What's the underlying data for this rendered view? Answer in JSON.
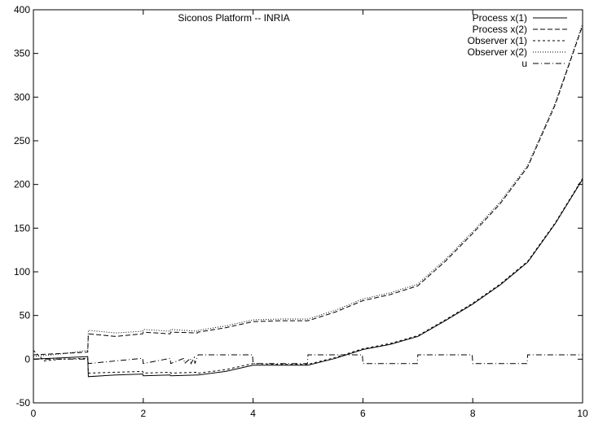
{
  "chart_data": {
    "type": "line",
    "title": "Siconos Platform -- INRIA",
    "xlabel": "",
    "ylabel": "",
    "xlim": [
      0,
      10
    ],
    "ylim": [
      -50,
      400
    ],
    "xticks": [
      0,
      2,
      4,
      6,
      8,
      10
    ],
    "yticks": [
      -50,
      0,
      50,
      100,
      150,
      200,
      250,
      300,
      350,
      400
    ],
    "grid": false,
    "legend_position": "top-right",
    "series": [
      {
        "name": "Process x(1)",
        "dash": "solid",
        "points": [
          [
            0,
            0
          ],
          [
            0.5,
            1.5
          ],
          [
            0.99,
            3
          ],
          [
            1.0,
            -20
          ],
          [
            1.5,
            -18
          ],
          [
            1.99,
            -17
          ],
          [
            2.0,
            -19
          ],
          [
            2.49,
            -18
          ],
          [
            2.5,
            -19
          ],
          [
            2.99,
            -18
          ],
          [
            3.0,
            -18
          ],
          [
            3.5,
            -14
          ],
          [
            4.0,
            -7
          ],
          [
            4.5,
            -7
          ],
          [
            5.0,
            -7
          ],
          [
            5.5,
            1
          ],
          [
            6.0,
            11
          ],
          [
            6.5,
            17
          ],
          [
            7.0,
            26
          ],
          [
            7.5,
            44
          ],
          [
            8.0,
            63
          ],
          [
            8.5,
            85
          ],
          [
            9.0,
            111
          ],
          [
            9.5,
            155
          ],
          [
            10.0,
            206
          ]
        ]
      },
      {
        "name": "Process x(2)",
        "dash": "dashed",
        "points": [
          [
            0,
            5
          ],
          [
            0.5,
            6.5
          ],
          [
            0.99,
            8
          ],
          [
            1.0,
            29
          ],
          [
            1.5,
            26
          ],
          [
            1.99,
            29
          ],
          [
            2.0,
            31
          ],
          [
            2.49,
            29
          ],
          [
            2.5,
            31
          ],
          [
            2.99,
            30
          ],
          [
            3.0,
            31
          ],
          [
            3.5,
            36
          ],
          [
            4.0,
            43
          ],
          [
            4.5,
            44
          ],
          [
            5.0,
            44
          ],
          [
            5.5,
            54
          ],
          [
            6.0,
            67
          ],
          [
            6.5,
            74
          ],
          [
            7.0,
            84
          ],
          [
            7.5,
            112
          ],
          [
            8.0,
            144
          ],
          [
            8.5,
            178
          ],
          [
            9.0,
            220
          ],
          [
            9.5,
            291
          ],
          [
            10.0,
            382
          ]
        ]
      },
      {
        "name": "Observer x(1)",
        "dash": "dotted",
        "points": [
          [
            0,
            10
          ],
          [
            0.2,
            -2
          ],
          [
            0.5,
            0
          ],
          [
            0.99,
            1
          ],
          [
            1.0,
            -16
          ],
          [
            1.5,
            -15
          ],
          [
            1.99,
            -14
          ],
          [
            2.0,
            -16
          ],
          [
            2.49,
            -15
          ],
          [
            2.5,
            -16
          ],
          [
            2.99,
            -15
          ],
          [
            3.0,
            -16
          ],
          [
            3.5,
            -12
          ],
          [
            4.0,
            -5
          ],
          [
            4.5,
            -6
          ],
          [
            5.0,
            -6
          ],
          [
            5.5,
            2
          ],
          [
            6.0,
            12
          ],
          [
            6.5,
            18
          ],
          [
            7.0,
            27
          ],
          [
            7.5,
            45
          ],
          [
            8.0,
            64
          ],
          [
            8.5,
            86
          ],
          [
            9.0,
            112
          ],
          [
            9.5,
            156
          ],
          [
            10.0,
            207
          ]
        ]
      },
      {
        "name": "Observer x(2)",
        "dash": "fine-dotted",
        "points": [
          [
            0,
            3
          ],
          [
            0.5,
            6
          ],
          [
            0.99,
            10
          ],
          [
            1.0,
            33
          ],
          [
            1.5,
            30
          ],
          [
            1.99,
            32
          ],
          [
            2.0,
            34
          ],
          [
            2.49,
            32
          ],
          [
            2.5,
            34
          ],
          [
            2.99,
            32
          ],
          [
            3.0,
            33
          ],
          [
            3.5,
            38
          ],
          [
            4.0,
            45
          ],
          [
            4.5,
            46
          ],
          [
            5.0,
            46
          ],
          [
            5.5,
            56
          ],
          [
            6.0,
            69
          ],
          [
            6.5,
            76
          ],
          [
            7.0,
            86
          ],
          [
            7.5,
            114
          ],
          [
            8.0,
            146
          ],
          [
            8.5,
            180
          ],
          [
            9.0,
            222
          ],
          [
            9.5,
            293
          ],
          [
            10.0,
            384
          ]
        ]
      },
      {
        "name": "u",
        "dash": "dash-dot",
        "points": [
          [
            0,
            0
          ],
          [
            0.99,
            0
          ],
          [
            1.0,
            -5
          ],
          [
            1.99,
            1
          ],
          [
            2.0,
            -5
          ],
          [
            2.49,
            1
          ],
          [
            2.5,
            -5
          ],
          [
            2.74,
            1
          ],
          [
            2.75,
            -5
          ],
          [
            2.86,
            1
          ],
          [
            2.87,
            -5
          ],
          [
            2.93,
            2
          ],
          [
            2.94,
            -5
          ],
          [
            3.0,
            5
          ],
          [
            3.99,
            5
          ],
          [
            4.0,
            -5
          ],
          [
            4.99,
            -5
          ],
          [
            5.0,
            5
          ],
          [
            5.99,
            5
          ],
          [
            6.0,
            -5
          ],
          [
            6.99,
            -5
          ],
          [
            7.0,
            5
          ],
          [
            7.99,
            5
          ],
          [
            8.0,
            -5
          ],
          [
            8.99,
            -5
          ],
          [
            9.0,
            5
          ],
          [
            10.0,
            5
          ]
        ]
      }
    ]
  }
}
